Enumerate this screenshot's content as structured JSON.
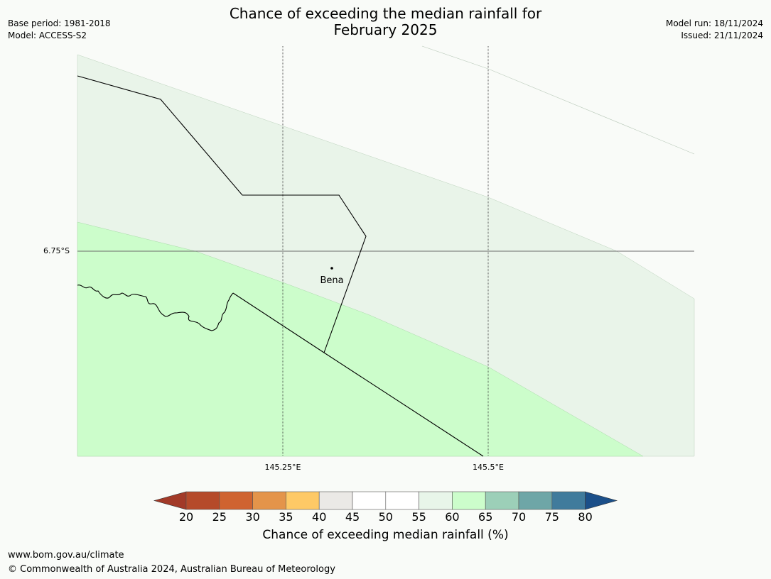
{
  "title": {
    "line1": "Chance of exceeding the median rainfall for",
    "line2": "February 2025"
  },
  "meta_left": {
    "base_period": "Base period: 1981-2018",
    "model": "Model: ACCESS-S2"
  },
  "meta_right": {
    "model_run": "Model run: 18/11/2024",
    "issued": "Issued: 21/11/2024"
  },
  "map": {
    "lat_label": "6.75°S",
    "lon_labels": [
      "145.25°E",
      "145.5°E"
    ],
    "place": "Bena",
    "fill_colors": {
      "light_band": "#e9f4e9",
      "green_band": "#ccfdcb",
      "background": "#f9fbf8"
    }
  },
  "colorbar": {
    "ticks": [
      "20",
      "25",
      "30",
      "35",
      "40",
      "45",
      "50",
      "55",
      "60",
      "65",
      "70",
      "75",
      "80"
    ],
    "colors": [
      "#a23a28",
      "#b54a2a",
      "#cf6330",
      "#e4944a",
      "#fec966",
      "#ebe9e6",
      "#ffffff",
      "#ffffff",
      "#e8f5e9",
      "#ccfdcb",
      "#9ccfb8",
      "#6ea6a7",
      "#407b9c",
      "#1b4f89"
    ],
    "label": "Chance of exceeding median rainfall (%)"
  },
  "footer": {
    "url": "www.bom.gov.au/climate",
    "copyright": "© Commonwealth of Australia 2024, Australian Bureau of Meteorology"
  }
}
